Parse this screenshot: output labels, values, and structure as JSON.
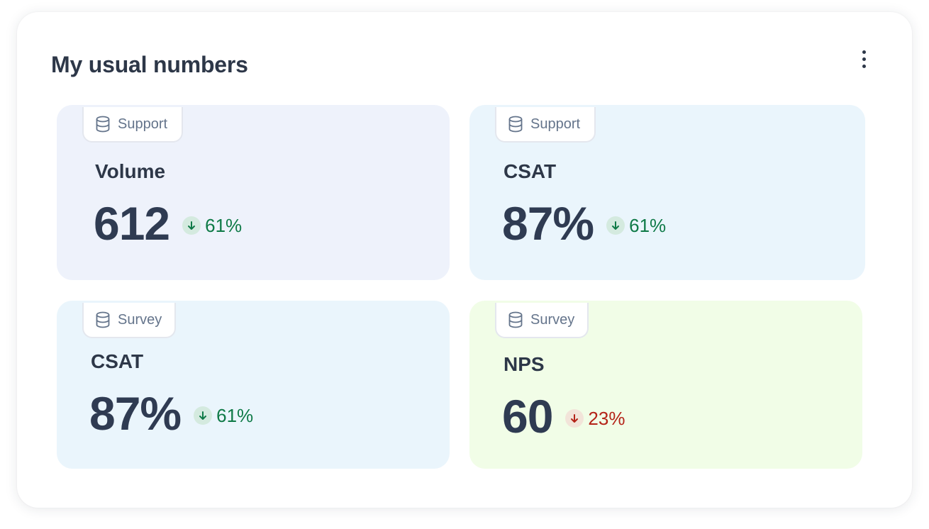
{
  "widget": {
    "title": "My usual numbers",
    "menu_icon": "more-vertical-icon"
  },
  "cards": [
    {
      "source": "Support",
      "source_icon": "database-icon",
      "metric": "Volume",
      "value": "612",
      "change": "61%",
      "direction": "down",
      "trend": "good",
      "background": "#eef2fb"
    },
    {
      "source": "Support",
      "source_icon": "database-icon",
      "metric": "CSAT",
      "value": "87%",
      "change": "61%",
      "direction": "down",
      "trend": "good",
      "background": "#eaf5fc"
    },
    {
      "source": "Survey",
      "source_icon": "database-icon",
      "metric": "CSAT",
      "value": "87%",
      "change": "61%",
      "direction": "down",
      "trend": "good",
      "background": "#eaf5fc"
    },
    {
      "source": "Survey",
      "source_icon": "database-icon",
      "metric": "NPS",
      "value": "60",
      "change": "23%",
      "direction": "down",
      "trend": "bad",
      "background": "#f1fde7"
    }
  ],
  "colors": {
    "good": "#0f7a47",
    "bad": "#b42318",
    "text": "#2d3748"
  }
}
